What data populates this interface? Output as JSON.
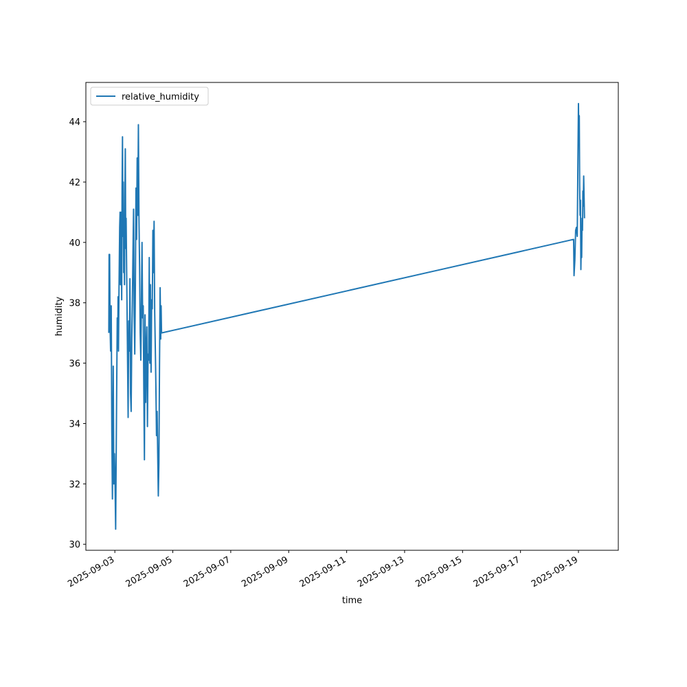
{
  "chart_data": {
    "type": "line",
    "title": "",
    "xlabel": "time",
    "ylabel": "humidity",
    "x_tick_labels": [
      "2025-09-03",
      "2025-09-05",
      "2025-09-07",
      "2025-09-09",
      "2025-09-11",
      "2025-09-13",
      "2025-09-15",
      "2025-09-17",
      "2025-09-19"
    ],
    "y_ticks": [
      30,
      32,
      34,
      36,
      38,
      40,
      42,
      44
    ],
    "xlim": [
      "2025-09-02T00:00",
      "2025-09-20T09:00"
    ],
    "ylim": [
      29.8,
      45.3
    ],
    "grid": false,
    "legend": {
      "position": "top-left",
      "entries": [
        "relative_humidity"
      ]
    },
    "series": [
      {
        "name": "relative_humidity",
        "color": "#1f77b4",
        "points": [
          [
            "2025-09-02T19:00",
            37.0
          ],
          [
            "2025-09-02T19:15",
            39.6
          ],
          [
            "2025-09-02T19:40",
            39.6
          ],
          [
            "2025-09-02T20:00",
            37.3
          ],
          [
            "2025-09-02T20:30",
            36.4
          ],
          [
            "2025-09-02T21:00",
            37.9
          ],
          [
            "2025-09-02T21:30",
            33.7
          ],
          [
            "2025-09-02T22:00",
            31.5
          ],
          [
            "2025-09-02T22:40",
            35.9
          ],
          [
            "2025-09-02T23:10",
            32.0
          ],
          [
            "2025-09-02T23:40",
            33.0
          ],
          [
            "2025-09-03T00:10",
            32.0
          ],
          [
            "2025-09-03T00:40",
            30.5
          ],
          [
            "2025-09-03T01:30",
            35.0
          ],
          [
            "2025-09-03T02:00",
            37.5
          ],
          [
            "2025-09-03T02:20",
            36.5
          ],
          [
            "2025-09-03T02:40",
            38.2
          ],
          [
            "2025-09-03T03:00",
            36.4
          ],
          [
            "2025-09-03T03:20",
            38.0
          ],
          [
            "2025-09-03T04:00",
            40.5
          ],
          [
            "2025-09-03T04:20",
            41.0
          ],
          [
            "2025-09-03T04:40",
            38.6
          ],
          [
            "2025-09-03T05:00",
            39.5
          ],
          [
            "2025-09-03T05:20",
            41.0
          ],
          [
            "2025-09-03T05:40",
            38.1
          ],
          [
            "2025-09-03T06:00",
            41.8
          ],
          [
            "2025-09-03T06:20",
            43.5
          ],
          [
            "2025-09-03T06:40",
            40.2
          ],
          [
            "2025-09-03T07:00",
            42.0
          ],
          [
            "2025-09-03T07:20",
            39.0
          ],
          [
            "2025-09-03T07:40",
            40.2
          ],
          [
            "2025-09-03T08:00",
            38.6
          ],
          [
            "2025-09-03T08:20",
            41.5
          ],
          [
            "2025-09-03T08:40",
            43.1
          ],
          [
            "2025-09-03T09:00",
            39.8
          ],
          [
            "2025-09-03T09:20",
            40.8
          ],
          [
            "2025-09-03T10:00",
            38.2
          ],
          [
            "2025-09-03T10:40",
            35.6
          ],
          [
            "2025-09-03T11:00",
            34.2
          ],
          [
            "2025-09-03T11:30",
            37.4
          ],
          [
            "2025-09-03T12:00",
            36.4
          ],
          [
            "2025-09-03T12:30",
            38.8
          ],
          [
            "2025-09-03T13:00",
            35.0
          ],
          [
            "2025-09-03T13:30",
            34.4
          ],
          [
            "2025-09-03T14:00",
            36.8
          ],
          [
            "2025-09-03T14:30",
            38.0
          ],
          [
            "2025-09-03T15:00",
            39.6
          ],
          [
            "2025-09-03T15:30",
            41.1
          ],
          [
            "2025-09-03T16:00",
            37.6
          ],
          [
            "2025-09-03T16:30",
            36.3
          ],
          [
            "2025-09-03T17:00",
            38.6
          ],
          [
            "2025-09-03T17:30",
            41.8
          ],
          [
            "2025-09-03T18:00",
            40.1
          ],
          [
            "2025-09-03T18:30",
            42.8
          ],
          [
            "2025-09-03T19:00",
            40.9
          ],
          [
            "2025-09-03T19:30",
            43.9
          ],
          [
            "2025-09-03T20:00",
            40.7
          ],
          [
            "2025-09-03T20:30",
            39.2
          ],
          [
            "2025-09-03T21:00",
            37.0
          ],
          [
            "2025-09-03T21:30",
            36.1
          ],
          [
            "2025-09-03T22:00",
            37.9
          ],
          [
            "2025-09-03T22:30",
            40.0
          ],
          [
            "2025-09-03T23:00",
            37.5
          ],
          [
            "2025-09-03T23:30",
            37.9
          ],
          [
            "2025-09-04T00:00",
            35.1
          ],
          [
            "2025-09-04T00:30",
            32.8
          ],
          [
            "2025-09-04T01:00",
            37.6
          ],
          [
            "2025-09-04T01:30",
            34.7
          ],
          [
            "2025-09-04T02:00",
            36.4
          ],
          [
            "2025-09-04T02:30",
            37.2
          ],
          [
            "2025-09-04T03:00",
            33.9
          ],
          [
            "2025-09-04T03:30",
            36.3
          ],
          [
            "2025-09-04T04:00",
            36.1
          ],
          [
            "2025-09-04T04:30",
            39.5
          ],
          [
            "2025-09-04T05:00",
            36.0
          ],
          [
            "2025-09-04T05:30",
            38.6
          ],
          [
            "2025-09-04T06:00",
            35.7
          ],
          [
            "2025-09-04T06:30",
            38.1
          ],
          [
            "2025-09-04T07:00",
            37.8
          ],
          [
            "2025-09-04T07:30",
            40.4
          ],
          [
            "2025-09-04T08:00",
            39.0
          ],
          [
            "2025-09-04T08:30",
            40.7
          ],
          [
            "2025-09-04T09:00",
            37.7
          ],
          [
            "2025-09-04T09:30",
            36.5
          ],
          [
            "2025-09-04T10:00",
            35.2
          ],
          [
            "2025-09-04T10:30",
            33.6
          ],
          [
            "2025-09-04T11:00",
            34.4
          ],
          [
            "2025-09-04T11:30",
            33.0
          ],
          [
            "2025-09-04T12:00",
            31.6
          ],
          [
            "2025-09-04T12:30",
            32.7
          ],
          [
            "2025-09-04T13:00",
            36.0
          ],
          [
            "2025-09-04T13:30",
            38.5
          ],
          [
            "2025-09-04T14:00",
            36.8
          ],
          [
            "2025-09-04T14:20",
            37.9
          ],
          [
            "2025-09-04T14:40",
            37.0
          ],
          [
            "2025-09-18T20:00",
            40.1
          ],
          [
            "2025-09-18T20:20",
            38.9
          ],
          [
            "2025-09-18T21:00",
            39.4
          ],
          [
            "2025-09-18T21:40",
            40.4
          ],
          [
            "2025-09-18T22:20",
            40.5
          ],
          [
            "2025-09-18T23:00",
            40.2
          ],
          [
            "2025-09-18T23:30",
            42.5
          ],
          [
            "2025-09-19T00:00",
            44.6
          ],
          [
            "2025-09-19T00:20",
            43.3
          ],
          [
            "2025-09-19T00:40",
            44.2
          ],
          [
            "2025-09-19T01:00",
            41.9
          ],
          [
            "2025-09-19T01:20",
            40.9
          ],
          [
            "2025-09-19T01:40",
            41.4
          ],
          [
            "2025-09-19T02:00",
            39.1
          ],
          [
            "2025-09-19T02:20",
            40.0
          ],
          [
            "2025-09-19T02:40",
            39.5
          ],
          [
            "2025-09-19T03:00",
            40.8
          ],
          [
            "2025-09-19T03:20",
            40.4
          ],
          [
            "2025-09-19T03:40",
            41.7
          ],
          [
            "2025-09-19T04:00",
            41.2
          ],
          [
            "2025-09-19T04:20",
            42.2
          ],
          [
            "2025-09-19T04:40",
            41.5
          ],
          [
            "2025-09-19T05:00",
            40.8
          ]
        ]
      }
    ]
  }
}
